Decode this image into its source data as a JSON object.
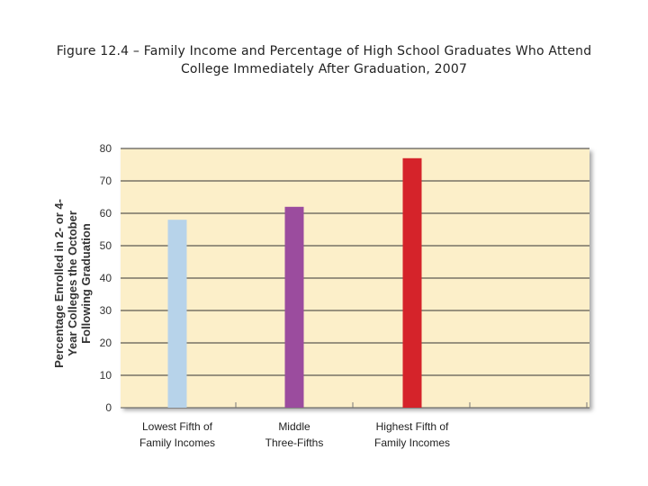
{
  "title_lines": [
    "Figure 12.4 – Family Income and Percentage of High School Graduates Who Attend",
    "College Immediately After Graduation, 2007"
  ],
  "colors": {
    "plot_bg": "#fcefc9",
    "gridline": "#333333",
    "bars": [
      "#b7d3ea",
      "#9b4c9e",
      "#d5232a"
    ]
  },
  "chart_data": {
    "type": "bar",
    "title": "Figure 12.4 – Family Income and Percentage of High School Graduates Who Attend College Immediately After Graduation, 2007",
    "categories": [
      [
        "Lowest Fifth of",
        "Family Incomes"
      ],
      [
        "Middle",
        "Three-Fifths"
      ],
      [
        "Highest Fifth of",
        "Family Incomes"
      ]
    ],
    "values": [
      58,
      62,
      77
    ],
    "xlabel": "",
    "ylabel_lines": [
      "Percentage Enrolled in 2- or 4-",
      "Year Colleges the October",
      "Following Graduation"
    ],
    "ylim": [
      0,
      80
    ],
    "yticks": [
      0,
      10,
      20,
      30,
      40,
      50,
      60,
      70,
      80
    ],
    "grid": true
  }
}
